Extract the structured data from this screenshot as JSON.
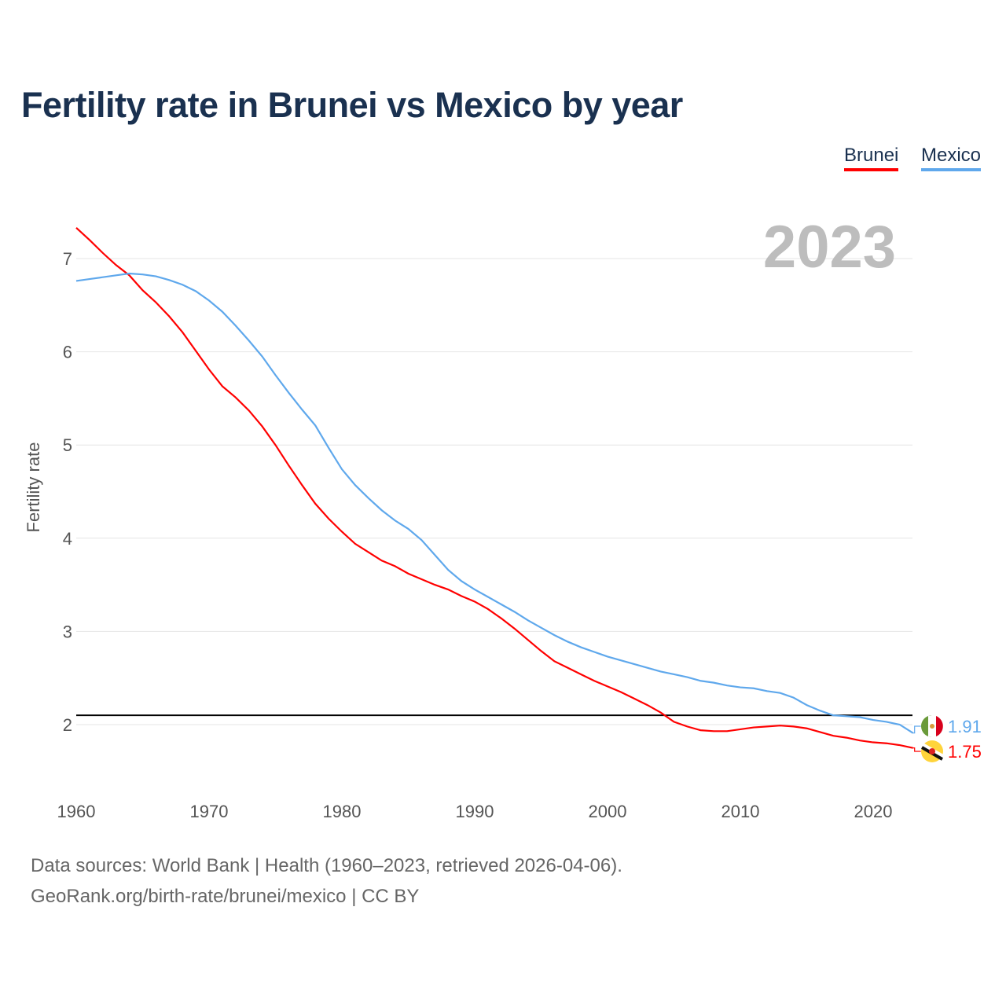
{
  "chart_data": {
    "type": "line",
    "title": "Fertility rate in Brunei vs Mexico by year",
    "xlabel": "",
    "ylabel": "Fertility rate",
    "xlim": [
      1960,
      2023
    ],
    "ylim": [
      1.5,
      7.5
    ],
    "x_ticks": [
      "1960",
      "1970",
      "1980",
      "1990",
      "2000",
      "2010",
      "2020"
    ],
    "y_ticks": [
      "2",
      "3",
      "4",
      "5",
      "6",
      "7"
    ],
    "grid": true,
    "legend_position": "top-right",
    "year_label": "2023",
    "reference_line": 2.1,
    "x": [
      1960,
      1961,
      1962,
      1963,
      1964,
      1965,
      1966,
      1967,
      1968,
      1969,
      1970,
      1971,
      1972,
      1973,
      1974,
      1975,
      1976,
      1977,
      1978,
      1979,
      1980,
      1981,
      1982,
      1983,
      1984,
      1985,
      1986,
      1987,
      1988,
      1989,
      1990,
      1991,
      1992,
      1993,
      1994,
      1995,
      1996,
      1997,
      1998,
      1999,
      2000,
      2001,
      2002,
      2003,
      2004,
      2005,
      2006,
      2007,
      2008,
      2009,
      2010,
      2011,
      2012,
      2013,
      2014,
      2015,
      2016,
      2017,
      2018,
      2019,
      2020,
      2021,
      2022,
      2023
    ],
    "series": [
      {
        "name": "Brunei",
        "color": "#ff0000",
        "end_label": "1.75",
        "values": [
          7.33,
          7.2,
          7.06,
          6.93,
          6.82,
          6.66,
          6.53,
          6.38,
          6.21,
          6.01,
          5.81,
          5.63,
          5.51,
          5.37,
          5.2,
          5.0,
          4.78,
          4.57,
          4.37,
          4.21,
          4.07,
          3.94,
          3.85,
          3.76,
          3.7,
          3.62,
          3.56,
          3.5,
          3.45,
          3.38,
          3.32,
          3.24,
          3.14,
          3.03,
          2.91,
          2.79,
          2.68,
          2.61,
          2.54,
          2.47,
          2.41,
          2.35,
          2.28,
          2.21,
          2.13,
          2.03,
          1.98,
          1.94,
          1.93,
          1.93,
          1.95,
          1.97,
          1.98,
          1.99,
          1.98,
          1.96,
          1.92,
          1.88,
          1.86,
          1.83,
          1.81,
          1.8,
          1.78,
          1.75
        ]
      },
      {
        "name": "Mexico",
        "color": "#5fa8ec",
        "end_label": "1.91",
        "values": [
          6.76,
          6.78,
          6.8,
          6.82,
          6.84,
          6.83,
          6.81,
          6.77,
          6.72,
          6.65,
          6.55,
          6.43,
          6.28,
          6.12,
          5.95,
          5.75,
          5.56,
          5.38,
          5.21,
          4.97,
          4.74,
          4.57,
          4.43,
          4.3,
          4.19,
          4.1,
          3.98,
          3.82,
          3.66,
          3.54,
          3.45,
          3.37,
          3.29,
          3.21,
          3.12,
          3.04,
          2.96,
          2.89,
          2.83,
          2.78,
          2.73,
          2.69,
          2.65,
          2.61,
          2.57,
          2.54,
          2.51,
          2.47,
          2.45,
          2.42,
          2.4,
          2.39,
          2.36,
          2.34,
          2.29,
          2.21,
          2.15,
          2.1,
          2.09,
          2.08,
          2.05,
          2.03,
          2.0,
          1.91
        ]
      }
    ]
  },
  "footer": {
    "line1": "Data sources: World Bank | Health (1960–2023, retrieved 2026-04-06).",
    "line2": "GeoRank.org/birth-rate/brunei/mexico | CC BY"
  }
}
